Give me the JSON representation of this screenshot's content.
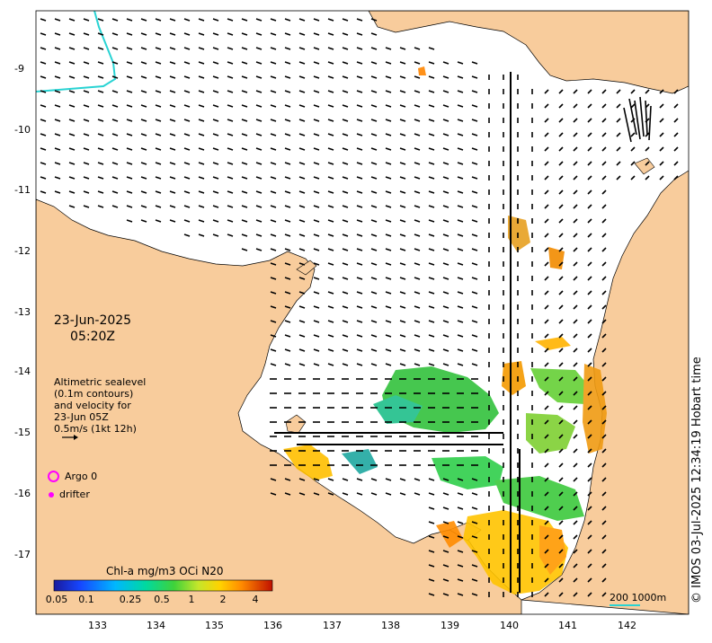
{
  "map": {
    "date_line1": "23-Jun-2025",
    "date_line2": "05:20Z",
    "info_lines": [
      "Altimetric sealevel",
      "(0.1m contours)",
      "and velocity for",
      "23-Jun 05Z",
      "0.5m/s (1kt 12h)"
    ],
    "legend": {
      "argo": "Argo 0",
      "drifter": "drifter"
    },
    "colorbar": {
      "title": "Chl-a mg/m3 OCi N20",
      "ticks": [
        "0.05",
        "0.1",
        "0.25",
        "0.5",
        "1",
        "2",
        "4"
      ]
    },
    "lon_labels": [
      "133",
      "134",
      "135",
      "136",
      "137",
      "138",
      "139",
      "140",
      "141",
      "142"
    ],
    "lat_labels": [
      "9",
      "10",
      "11",
      "12",
      "13",
      "14",
      "15",
      "16",
      "17"
    ],
    "lat_prefix": "-",
    "scale_label": "200  1000m",
    "copyright": "© IMOS 03-Jul-2025 12:34:19 Hobart time",
    "colors": {
      "land": "#f8cc9c",
      "ocean": "#ffffff",
      "argo": "#ff00ff",
      "bathy_line": "#29d3d3"
    }
  }
}
